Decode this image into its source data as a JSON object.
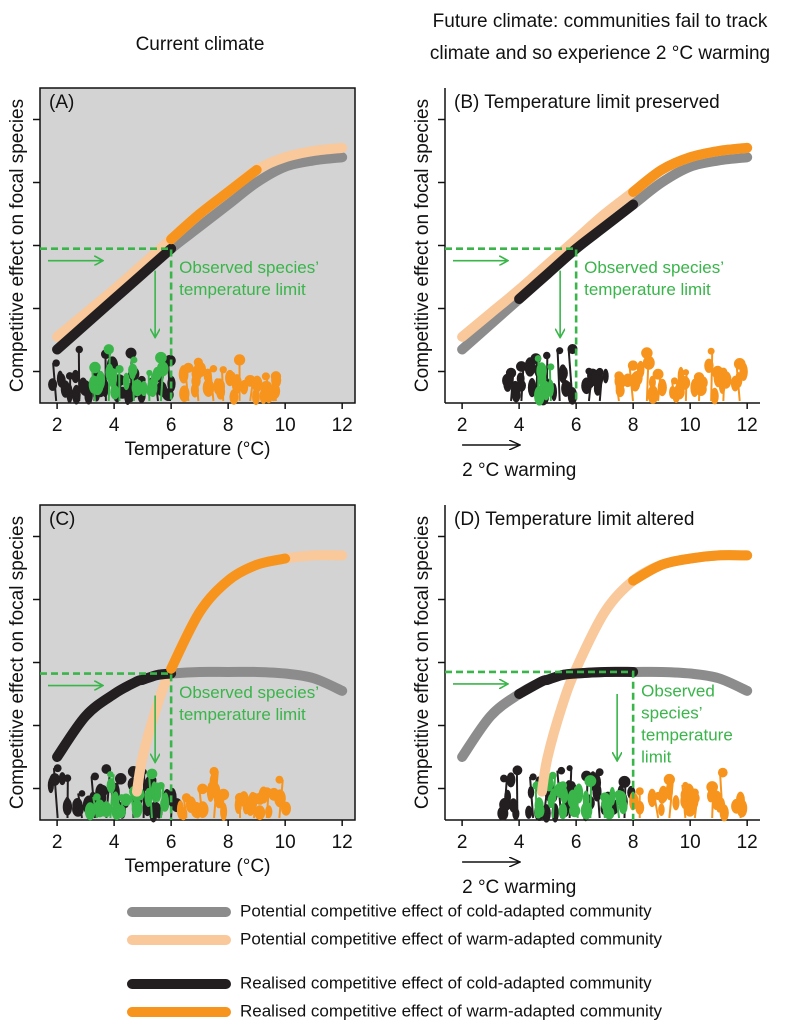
{
  "headers": {
    "left": "Current climate",
    "right": [
      "Future climate: communities fail to track",
      "climate and so experience 2 °C warming"
    ]
  },
  "legend": [
    {
      "name": "Potential competitive effect of cold-adapted community",
      "color": "#8c8c8c"
    },
    {
      "name": "Potential competitive effect of warm-adapted community",
      "color": "#f9c89b"
    },
    {
      "name": "Realised competitive effect of cold-adapted community",
      "color": "#231f20"
    },
    {
      "name": "Realised competitive effect of warm-adapted community",
      "color": "#f7941d"
    }
  ],
  "chart_data": [
    {
      "type": "line",
      "title": "(A)",
      "shaded": true,
      "xlabel": "Temperature (°C)",
      "ylabel": "Competitive effect on focal species",
      "xlim": [
        1.4,
        12.45
      ],
      "ylim": [
        0,
        10
      ],
      "xticks": [
        2,
        4,
        6,
        8,
        10,
        12
      ],
      "yticks": [
        1,
        3,
        5,
        7,
        9
      ],
      "x": [
        2,
        3,
        4,
        5,
        6,
        7,
        8,
        9,
        10,
        11,
        12
      ],
      "series": [
        {
          "legend": 0,
          "values": [
            1.7,
            2.5,
            3.3,
            4.1,
            4.9,
            5.6,
            6.3,
            7.0,
            7.5,
            7.7,
            7.8
          ]
        },
        {
          "legend": 1,
          "values": [
            2.1,
            2.85,
            3.6,
            4.4,
            5.2,
            6.0,
            6.7,
            7.4,
            7.8,
            8.0,
            8.1
          ]
        },
        {
          "legend": 2,
          "values": [
            1.7,
            2.5,
            3.3,
            4.1,
            4.9,
            null,
            null,
            null,
            null,
            null,
            null
          ]
        },
        {
          "legend": 3,
          "values": [
            null,
            null,
            null,
            null,
            5.2,
            6.0,
            6.7,
            7.4,
            null,
            null,
            null
          ]
        }
      ],
      "limit": {
        "x": 6,
        "y": 4.9
      },
      "annotation": [
        "Observed species’",
        "temperature limit"
      ]
    },
    {
      "type": "line",
      "title": "(B) Temperature limit preserved",
      "shaded": false,
      "ylabel": "Competitive effect on focal species",
      "warming_label": "2 °C warming",
      "xlim": [
        1.4,
        12.45
      ],
      "ylim": [
        0,
        10
      ],
      "xticks": [
        2,
        4,
        6,
        8,
        10,
        12
      ],
      "yticks": [
        1,
        3,
        5,
        7,
        9
      ],
      "x": [
        2,
        3,
        4,
        5,
        6,
        7,
        8,
        9,
        10,
        11,
        12
      ],
      "series": [
        {
          "legend": 0,
          "values": [
            1.7,
            2.5,
            3.3,
            4.1,
            4.9,
            5.6,
            6.3,
            7.0,
            7.5,
            7.7,
            7.8
          ]
        },
        {
          "legend": 1,
          "values": [
            2.1,
            2.85,
            3.6,
            4.4,
            5.2,
            6.0,
            6.7,
            7.4,
            7.8,
            8.0,
            8.1
          ]
        },
        {
          "legend": 2,
          "values": [
            null,
            null,
            3.3,
            4.1,
            4.9,
            5.6,
            6.3,
            null,
            null,
            null,
            null
          ]
        },
        {
          "legend": 3,
          "values": [
            null,
            null,
            null,
            null,
            null,
            null,
            6.7,
            7.4,
            7.8,
            8.0,
            8.1
          ]
        }
      ],
      "limit": {
        "x": 6,
        "y": 4.9
      },
      "annotation": [
        "Observed species’",
        "temperature limit"
      ]
    },
    {
      "type": "line",
      "title": "(C)",
      "shaded": true,
      "xlabel": "Temperature (°C)",
      "ylabel": "Competitive effect on focal species",
      "xlim": [
        1.4,
        12.45
      ],
      "ylim": [
        0,
        10
      ],
      "xticks": [
        2,
        4,
        6,
        8,
        10,
        12
      ],
      "yticks": [
        1,
        3,
        5,
        7,
        9
      ],
      "x": [
        2,
        3,
        4,
        4.8,
        5,
        5.5,
        6,
        7,
        8,
        9,
        10,
        11,
        12
      ],
      "series": [
        {
          "legend": 0,
          "values": [
            2.0,
            3.3,
            4.0,
            4.4,
            4.45,
            4.6,
            4.65,
            4.7,
            4.7,
            4.7,
            4.65,
            4.5,
            4.1
          ]
        },
        {
          "legend": 1,
          "values": [
            null,
            null,
            null,
            0.9,
            2.0,
            3.6,
            4.8,
            6.6,
            7.6,
            8.1,
            8.3,
            8.4,
            8.4
          ]
        },
        {
          "legend": 2,
          "values": [
            2.0,
            3.3,
            4.0,
            4.4,
            4.45,
            4.6,
            4.65,
            null,
            null,
            null,
            null,
            null,
            null
          ]
        },
        {
          "legend": 3,
          "values": [
            null,
            null,
            null,
            null,
            null,
            null,
            4.8,
            6.6,
            7.6,
            8.1,
            8.3,
            null,
            null
          ]
        }
      ],
      "limit": {
        "x": 6,
        "y": 4.65
      },
      "annotation": [
        "Observed species’",
        "temperature limit"
      ]
    },
    {
      "type": "line",
      "title": "(D) Temperature limit altered",
      "shaded": false,
      "ylabel": "Competitive effect on focal species",
      "warming_label": "2 °C warming",
      "xlim": [
        1.4,
        12.45
      ],
      "ylim": [
        0,
        10
      ],
      "xticks": [
        2,
        4,
        6,
        8,
        10,
        12
      ],
      "yticks": [
        1,
        3,
        5,
        7,
        9
      ],
      "x": [
        2,
        3,
        4,
        4.8,
        5,
        5.5,
        6,
        7,
        8,
        9,
        10,
        11,
        12
      ],
      "series": [
        {
          "legend": 0,
          "values": [
            2.0,
            3.3,
            4.0,
            4.4,
            4.45,
            4.6,
            4.65,
            4.7,
            4.7,
            4.7,
            4.65,
            4.5,
            4.1
          ]
        },
        {
          "legend": 1,
          "values": [
            null,
            null,
            null,
            0.9,
            2.0,
            3.6,
            4.8,
            6.6,
            7.6,
            8.1,
            8.3,
            8.4,
            8.4
          ]
        },
        {
          "legend": 2,
          "values": [
            null,
            null,
            4.0,
            4.4,
            4.45,
            4.6,
            4.65,
            4.7,
            4.7,
            null,
            null,
            null,
            null
          ]
        },
        {
          "legend": 3,
          "values": [
            null,
            null,
            null,
            null,
            null,
            null,
            null,
            null,
            7.6,
            8.1,
            8.3,
            8.4,
            8.4
          ]
        }
      ],
      "limit": {
        "x": 8,
        "y": 4.7
      },
      "annotation": [
        "Observed",
        "species’",
        "temperature",
        "limit"
      ]
    }
  ]
}
